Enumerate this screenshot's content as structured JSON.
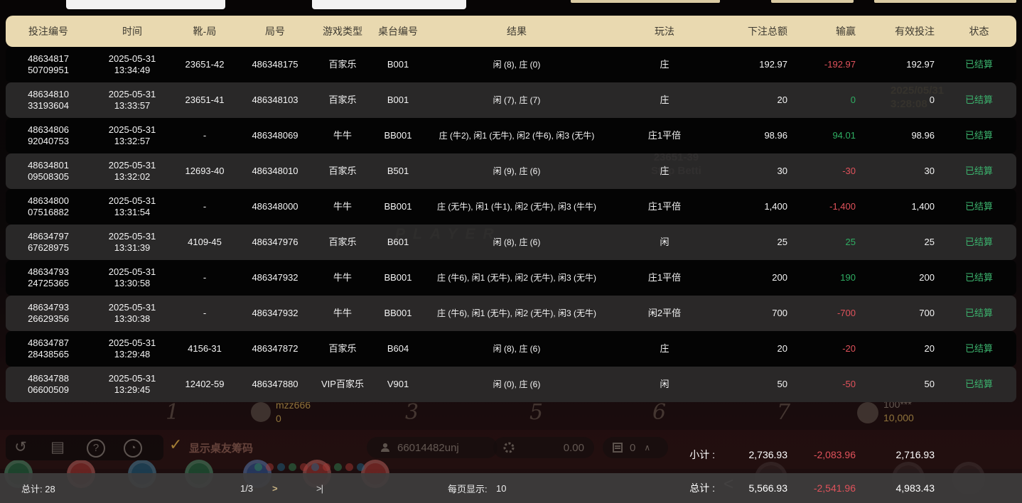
{
  "table": {
    "columns": [
      "投注编号",
      "时间",
      "靴-局",
      "局号",
      "游戏类型",
      "桌台编号",
      "结果",
      "玩法",
      "下注总额",
      "输赢",
      "有效投注",
      "状态"
    ],
    "rows": [
      {
        "bet_no": [
          "48634817",
          "50709951"
        ],
        "date": "2025-05-31",
        "time": "13:34:49",
        "shoe": "23651-42",
        "round": "486348175",
        "game": "百家乐",
        "table": "B001",
        "result": "闲 (8), 庄 (0)",
        "play": "庄",
        "bet_total": "192.97",
        "win_loss": "-192.97",
        "valid_bet": "192.97",
        "status": "已结算"
      },
      {
        "bet_no": [
          "48634810",
          "33193604"
        ],
        "date": "2025-05-31",
        "time": "13:33:57",
        "shoe": "23651-41",
        "round": "486348103",
        "game": "百家乐",
        "table": "B001",
        "result": "闲 (7), 庄 (7)",
        "play": "庄",
        "bet_total": "20",
        "win_loss": "0",
        "valid_bet": "0",
        "status": "已结算"
      },
      {
        "bet_no": [
          "48634806",
          "92040753"
        ],
        "date": "2025-05-31",
        "time": "13:32:57",
        "shoe": "-",
        "round": "486348069",
        "game": "牛牛",
        "table": "BB001",
        "result": "庄 (牛2), 闲1 (无牛), 闲2 (牛6), 闲3 (无牛)",
        "play": "庄1平倍",
        "bet_total": "98.96",
        "win_loss": "94.01",
        "valid_bet": "98.96",
        "status": "已结算"
      },
      {
        "bet_no": [
          "48634801",
          "09508305"
        ],
        "date": "2025-05-31",
        "time": "13:32:02",
        "shoe": "12693-40",
        "round": "486348010",
        "game": "百家乐",
        "table": "B501",
        "result": "闲 (9), 庄 (6)",
        "play": "庄",
        "bet_total": "30",
        "win_loss": "-30",
        "valid_bet": "30",
        "status": "已结算"
      },
      {
        "bet_no": [
          "48634800",
          "07516882"
        ],
        "date": "2025-05-31",
        "time": "13:31:54",
        "shoe": "-",
        "round": "486348000",
        "game": "牛牛",
        "table": "BB001",
        "result": "庄 (无牛), 闲1 (牛1), 闲2 (无牛), 闲3 (牛牛)",
        "play": "庄1平倍",
        "bet_total": "1,400",
        "win_loss": "-1,400",
        "valid_bet": "1,400",
        "status": "已结算"
      },
      {
        "bet_no": [
          "48634797",
          "67628975"
        ],
        "date": "2025-05-31",
        "time": "13:31:39",
        "shoe": "4109-45",
        "round": "486347976",
        "game": "百家乐",
        "table": "B601",
        "result": "闲 (8), 庄 (6)",
        "play": "闲",
        "bet_total": "25",
        "win_loss": "25",
        "valid_bet": "25",
        "status": "已结算"
      },
      {
        "bet_no": [
          "48634793",
          "24725365"
        ],
        "date": "2025-05-31",
        "time": "13:30:58",
        "shoe": "-",
        "round": "486347932",
        "game": "牛牛",
        "table": "BB001",
        "result": "庄 (牛6), 闲1 (无牛), 闲2 (无牛), 闲3 (无牛)",
        "play": "庄1平倍",
        "bet_total": "200",
        "win_loss": "190",
        "valid_bet": "200",
        "status": "已结算"
      },
      {
        "bet_no": [
          "48634793",
          "26629356"
        ],
        "date": "2025-05-31",
        "time": "13:30:38",
        "shoe": "-",
        "round": "486347932",
        "game": "牛牛",
        "table": "BB001",
        "result": "庄 (牛6), 闲1 (无牛), 闲2 (无牛), 闲3 (无牛)",
        "play": "闲2平倍",
        "bet_total": "700",
        "win_loss": "-700",
        "valid_bet": "700",
        "status": "已结算"
      },
      {
        "bet_no": [
          "48634787",
          "28438565"
        ],
        "date": "2025-05-31",
        "time": "13:29:48",
        "shoe": "4156-31",
        "round": "486347872",
        "game": "百家乐",
        "table": "B604",
        "result": "闲 (8), 庄 (6)",
        "play": "庄",
        "bet_total": "20",
        "win_loss": "-20",
        "valid_bet": "20",
        "status": "已结算"
      },
      {
        "bet_no": [
          "48634788",
          "06600509"
        ],
        "date": "2025-05-31",
        "time": "13:29:45",
        "shoe": "12402-59",
        "round": "486347880",
        "game": "VIP百家乐",
        "table": "V901",
        "result": "闲 (0), 庄 (6)",
        "play": "闲",
        "bet_total": "50",
        "win_loss": "-50",
        "valid_bet": "50",
        "status": "已结算"
      }
    ],
    "subtotal": {
      "label": "小计 :",
      "bet_total": "2,736.93",
      "win_loss": "-2,083.96",
      "valid_bet": "2,716.93"
    },
    "total": {
      "label": "总计 :",
      "bet_total": "5,566.93",
      "win_loss": "-2,541.96",
      "valid_bet": "4,983.43"
    }
  },
  "pagination": {
    "total_text": "总计: 28",
    "page": "1/3",
    "next": ">",
    "last": ">|",
    "per_page_label": "每页显示:",
    "per_page_value": "10"
  },
  "background": {
    "seats": [
      "1",
      "3",
      "5",
      "6",
      "7"
    ],
    "player_left": {
      "name": "mzz666",
      "amount": "0"
    },
    "player_right": {
      "name": "100***",
      "amount": "10,000"
    },
    "show_chips_label": "显示桌友筹码",
    "user_id": "66014482unj",
    "balance": "0.00",
    "records_count": "0",
    "bleed_datetime_line1": "2025/05/31",
    "bleed_datetime_line2": "3:28:08",
    "bleed_round": "23651-39",
    "bleed_stop": "Stop Betti",
    "bleed_player": "PLAYER",
    "chevron_up": "∧",
    "carousel_prev": "<"
  },
  "colors": {
    "win": "#2fae63",
    "loss": "#e0525b",
    "status": "#3cb46e",
    "header_bg": "#e9d9b0",
    "header_text": "#3e3a31",
    "gold": "#b08d3f"
  }
}
